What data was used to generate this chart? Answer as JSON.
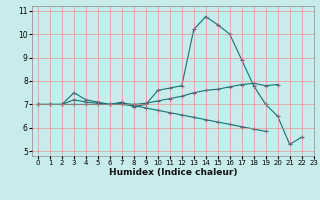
{
  "title": "",
  "xlabel": "Humidex (Indice chaleur)",
  "bg_color": "#c8ecec",
  "grid_color": "#f08080",
  "line_color": "#1a7070",
  "xlim": [
    -0.5,
    23
  ],
  "ylim": [
    4.8,
    11.2
  ],
  "yticks": [
    5,
    6,
    7,
    8,
    9,
    10,
    11
  ],
  "xticks": [
    0,
    1,
    2,
    3,
    4,
    5,
    6,
    7,
    8,
    9,
    10,
    11,
    12,
    13,
    14,
    15,
    16,
    17,
    18,
    19,
    20,
    21,
    22,
    23
  ],
  "line1_x": [
    0,
    1,
    2,
    3,
    4,
    5,
    6,
    7,
    8,
    9,
    10,
    11,
    12,
    13,
    14,
    15,
    16,
    17,
    18,
    19,
    20,
    21,
    22
  ],
  "line1_y": [
    7.0,
    7.0,
    7.0,
    7.5,
    7.2,
    7.1,
    7.0,
    7.1,
    6.9,
    7.0,
    7.6,
    7.7,
    7.8,
    10.2,
    10.75,
    10.4,
    10.0,
    8.9,
    7.8,
    7.0,
    6.5,
    5.3,
    5.6
  ],
  "line2_x": [
    0,
    1,
    2,
    3,
    4,
    5,
    6,
    7,
    8,
    9,
    10,
    11,
    12,
    13,
    14,
    15,
    16,
    17,
    18,
    19,
    20
  ],
  "line2_y": [
    7.0,
    7.0,
    7.0,
    7.2,
    7.1,
    7.05,
    7.0,
    7.05,
    7.0,
    7.05,
    7.15,
    7.25,
    7.35,
    7.5,
    7.6,
    7.65,
    7.75,
    7.85,
    7.9,
    7.8,
    7.85
  ],
  "line3_x": [
    0,
    1,
    2,
    3,
    4,
    5,
    6,
    7,
    8,
    9,
    10,
    11,
    12,
    13,
    14,
    15,
    16,
    17,
    18,
    19
  ],
  "line3_y": [
    7.0,
    7.0,
    7.0,
    7.0,
    7.0,
    7.0,
    7.0,
    7.0,
    6.95,
    6.85,
    6.75,
    6.65,
    6.55,
    6.45,
    6.35,
    6.25,
    6.15,
    6.05,
    5.95,
    5.85
  ]
}
